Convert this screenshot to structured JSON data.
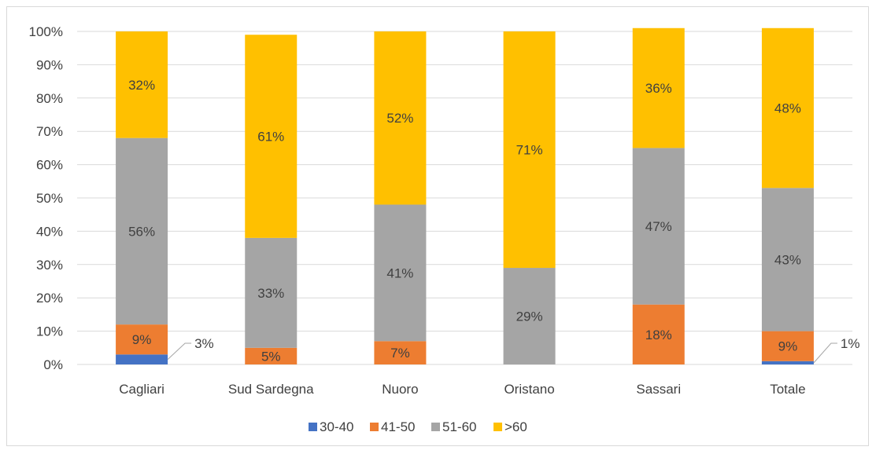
{
  "chart_data": {
    "type": "bar",
    "stacked": true,
    "percent": true,
    "categories": [
      "Cagliari",
      "Sud Sardegna",
      "Nuoro",
      "Oristano",
      "Sassari",
      "Totale"
    ],
    "series": [
      {
        "name": "30-40",
        "values": [
          3,
          0,
          0,
          0,
          0,
          1
        ],
        "labels": [
          "3%",
          "",
          "",
          "",
          "",
          "1%"
        ]
      },
      {
        "name": "41-50",
        "values": [
          9,
          5,
          7,
          0,
          18,
          9
        ],
        "labels": [
          "9%",
          "5%",
          "7%",
          "",
          "18%",
          "9%"
        ]
      },
      {
        "name": "51-60",
        "values": [
          56,
          33,
          41,
          29,
          47,
          43
        ],
        "labels": [
          "56%",
          "33%",
          "41%",
          "29%",
          "47%",
          "43%"
        ]
      },
      {
        "name": ">60",
        "values": [
          32,
          61,
          52,
          71,
          36,
          48
        ],
        "labels": [
          "32%",
          "61%",
          "52%",
          "71%",
          "36%",
          "48%"
        ]
      }
    ],
    "ylim": [
      0,
      100
    ],
    "yticks": [
      "0%",
      "10%",
      "20%",
      "30%",
      "40%",
      "50%",
      "60%",
      "70%",
      "80%",
      "90%",
      "100%"
    ],
    "grid": true,
    "legend_position": "bottom",
    "colors": {
      "30-40": "#4472C4",
      "41-50": "#ED7D31",
      "51-60": "#A5A5A5",
      ">60": "#FFC000",
      "grid": "#d9d9d9",
      "text": "#404040"
    }
  }
}
